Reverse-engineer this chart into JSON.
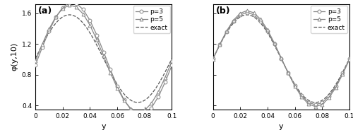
{
  "xlim": [
    0,
    0.1
  ],
  "ylim": [
    0.35,
    1.72
  ],
  "yticks": [
    0.4,
    0.8,
    1.2,
    1.6
  ],
  "xticks": [
    0,
    0.02,
    0.04,
    0.06,
    0.08,
    0.1
  ],
  "xtick_labels": [
    "0",
    "0.02",
    "0.04",
    "0.06",
    "0.08",
    "0.1"
  ],
  "xlabel": "y",
  "ylabel": "φ(y,10)",
  "panel_a_label": "(a)",
  "panel_b_label": "(b)",
  "line_color": "#888888",
  "exact_color": "#555555",
  "marker_size": 3.5,
  "line_width": 0.9,
  "legend_entries": [
    "p=3",
    "p=5",
    "exact"
  ],
  "n_points": 21,
  "phase_shift": 0.025,
  "amplitude": 0.57,
  "base_mean": 1.01,
  "a_p3_extra": 0.18,
  "a_p3_phase": 0.008,
  "a_p5_extra": 0.13,
  "a_p5_phase": 0.004,
  "b_p3_extra": 0.03,
  "b_p3_phase": 0.002,
  "b_p5_extra": 0.055,
  "b_p5_phase": 0.003
}
